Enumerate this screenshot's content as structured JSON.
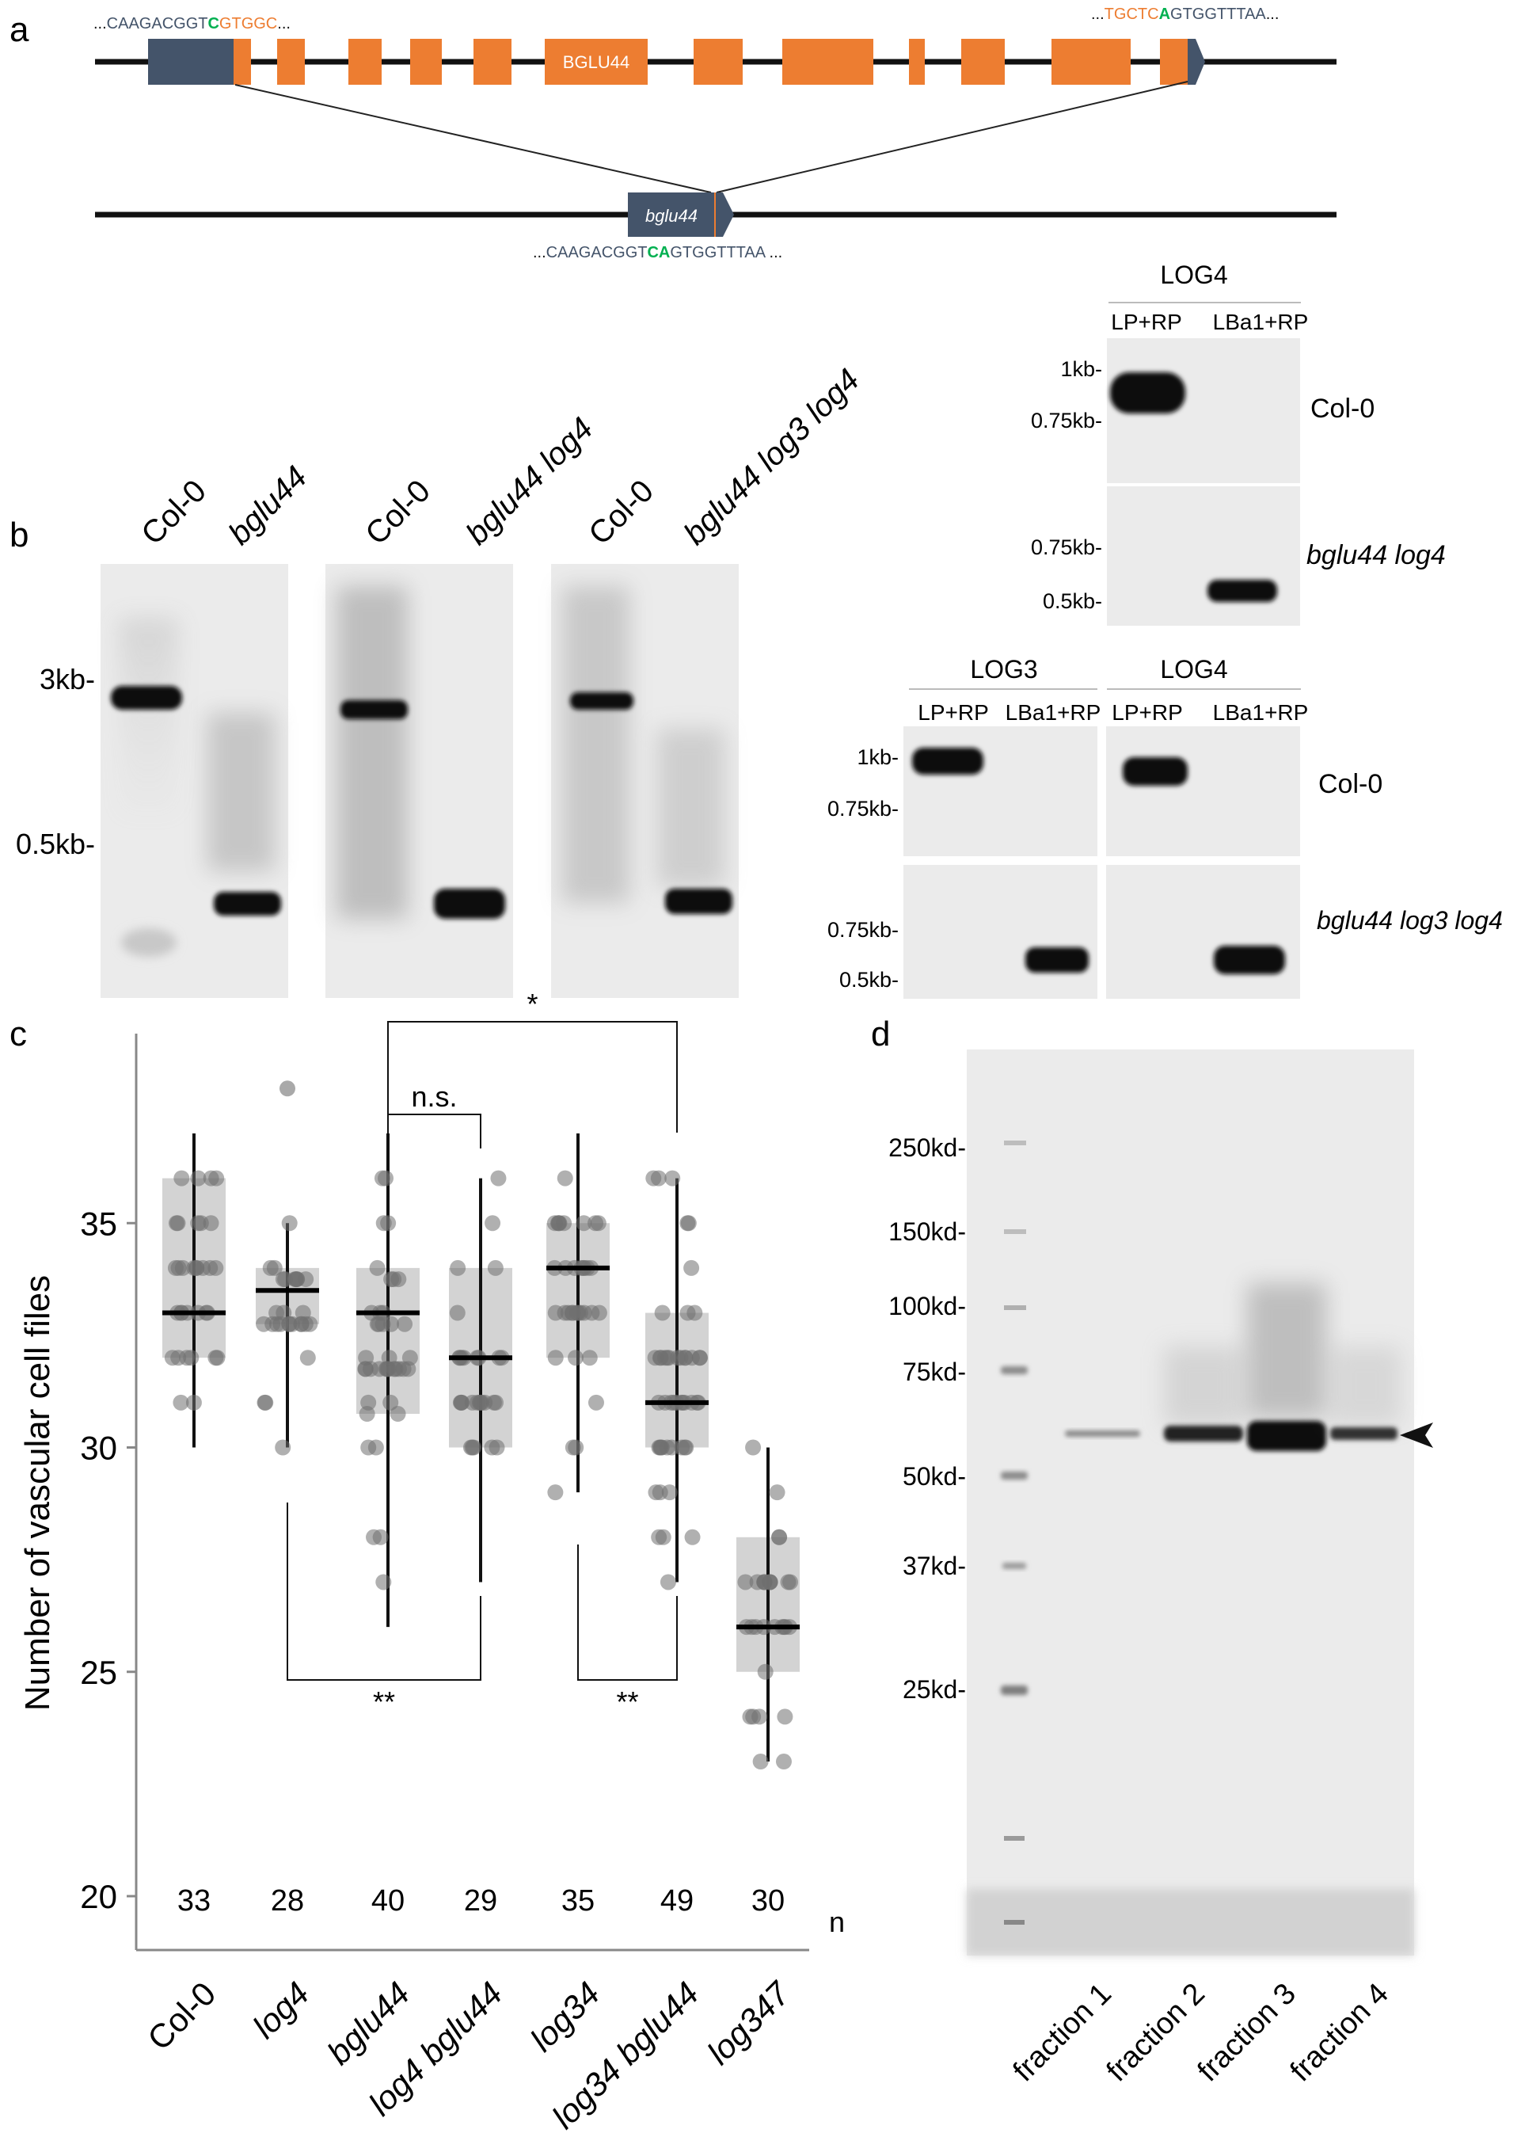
{
  "panels": {
    "a": "a",
    "b": "b",
    "c": "c",
    "d": "d"
  },
  "colors": {
    "exon": "#ED7D31",
    "utr": "#44546A",
    "line": "#111111",
    "green": "#00B050",
    "seq_gray": "#44546A",
    "gel_bg": "#ebebeb",
    "box": "#d3d3d3",
    "dot": "#8a8a8a"
  },
  "panel_a": {
    "gene_label": "BGLU44",
    "mutant_label": "bglu44",
    "seq_left": {
      "prefix": "...",
      "part1": "CAAGACGGT",
      "part2": "C",
      "part3": "GTGGC",
      "suffix": "..."
    },
    "seq_right": {
      "prefix": "...",
      "part1": "TGCTC",
      "part2": "A",
      "part3": "GTGGTTTAA",
      "suffix": "..."
    },
    "seq_mutant": {
      "prefix": "...",
      "part1": "CAAGACGGT",
      "part2": "CA",
      "part3": "GTGGTTTAA",
      "suffix": " ..."
    }
  },
  "panel_b": {
    "gels": [
      {
        "lanes": [
          "Col-0",
          "bglu44"
        ]
      },
      {
        "lanes": [
          "Col-0",
          "bglu44 log4"
        ]
      },
      {
        "lanes": [
          "Col-0",
          "bglu44 log3 log4"
        ]
      }
    ],
    "markers": [
      "3kb-",
      "0.5kb-"
    ],
    "log4_top": {
      "title": "LOG4",
      "columns": [
        "LP+RP",
        "LBa1+RP"
      ],
      "row1": {
        "label": "Col-0",
        "markers": [
          "1kb-",
          "0.75kb-"
        ]
      },
      "row2": {
        "label": "bglu44 log4",
        "markers": [
          "0.75kb-",
          "0.5kb-"
        ]
      }
    },
    "bottom": {
      "titles": [
        "LOG3",
        "LOG4"
      ],
      "columns": [
        "LP+RP",
        "LBa1+RP",
        "LP+RP",
        "LBa1+RP"
      ],
      "row1": {
        "label": "Col-0",
        "markers": [
          "1kb-",
          "0.75kb-"
        ]
      },
      "row2": {
        "label": "bglu44 log3 log4",
        "markers": [
          "0.75kb-",
          "0.5kb-"
        ]
      }
    }
  },
  "chart_data": {
    "type": "box",
    "ylabel": "Number of vascular cell files",
    "ylim": [
      20,
      38
    ],
    "yticks": [
      20,
      25,
      30,
      35
    ],
    "categories": [
      "Col-0",
      "log4",
      "bglu44",
      "log4 bglu44",
      "log34",
      "log34 bglu44",
      "log347"
    ],
    "n_label": "n",
    "n": [
      33,
      28,
      40,
      29,
      35,
      49,
      30
    ],
    "median": [
      33,
      33.5,
      33,
      32,
      34,
      31,
      26
    ],
    "q1": [
      32,
      32.75,
      30.75,
      30,
      32,
      30,
      25
    ],
    "q3": [
      36,
      34,
      34,
      34,
      35,
      33,
      28
    ],
    "whisker_low": [
      30,
      30,
      26,
      27,
      29,
      27,
      23
    ],
    "whisker_high": [
      37,
      35,
      37,
      36,
      37,
      36,
      30
    ],
    "outliers": [
      [],
      [
        38
      ],
      [],
      [],
      [],
      [],
      []
    ],
    "annotations": [
      {
        "groups": [
          "bglu44",
          "log34 bglu44"
        ],
        "label": "*"
      },
      {
        "groups": [
          "bglu44",
          "log4 bglu44"
        ],
        "label": "n.s."
      },
      {
        "groups": [
          "log4",
          "log4 bglu44"
        ],
        "label": "**"
      },
      {
        "groups": [
          "log34",
          "log34 bglu44"
        ],
        "label": "**"
      }
    ]
  },
  "panel_d": {
    "markers": [
      "250kd-",
      "150kd-",
      "100kd-",
      "75kd-",
      "50kd-",
      "37kd-",
      "25kd-"
    ],
    "lanes": [
      "fraction 1",
      "fraction 2",
      "fraction 3",
      "fraction 4"
    ]
  }
}
